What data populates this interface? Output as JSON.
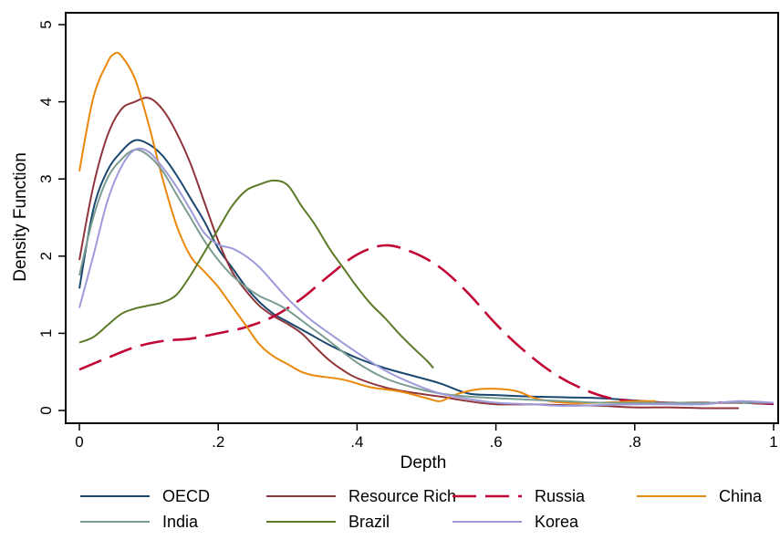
{
  "chart_data": {
    "type": "line",
    "title": "",
    "xlabel": "Depth",
    "ylabel": "Density Function",
    "xlim": [
      0,
      1
    ],
    "ylim": [
      0,
      5
    ],
    "x_ticks": [
      0,
      0.2,
      0.4,
      0.6,
      0.8,
      1
    ],
    "x_tick_labels": [
      "0",
      ".2",
      ".4",
      ".6",
      ".8",
      "1"
    ],
    "y_ticks": [
      0,
      1,
      2,
      3,
      4,
      5
    ],
    "y_tick_labels": [
      "0",
      "1",
      "2",
      "3",
      "4",
      "5"
    ],
    "grid": false,
    "legend_position": "bottom",
    "series": [
      {
        "name": "OECD",
        "color": "#1a476f",
        "dash": "solid",
        "points": [
          [
            0,
            1.58
          ],
          [
            0.02,
            2.6
          ],
          [
            0.04,
            3.1
          ],
          [
            0.06,
            3.35
          ],
          [
            0.08,
            3.5
          ],
          [
            0.1,
            3.45
          ],
          [
            0.12,
            3.3
          ],
          [
            0.14,
            3.05
          ],
          [
            0.16,
            2.75
          ],
          [
            0.18,
            2.45
          ],
          [
            0.2,
            2.1
          ],
          [
            0.22,
            1.85
          ],
          [
            0.24,
            1.6
          ],
          [
            0.26,
            1.4
          ],
          [
            0.28,
            1.25
          ],
          [
            0.3,
            1.15
          ],
          [
            0.33,
            1.0
          ],
          [
            0.36,
            0.85
          ],
          [
            0.4,
            0.68
          ],
          [
            0.44,
            0.55
          ],
          [
            0.48,
            0.45
          ],
          [
            0.52,
            0.35
          ],
          [
            0.56,
            0.22
          ],
          [
            0.6,
            0.2
          ],
          [
            0.65,
            0.18
          ],
          [
            0.7,
            0.17
          ],
          [
            0.75,
            0.16
          ],
          [
            0.8,
            0.13
          ],
          [
            0.85,
            0.1
          ],
          [
            0.9,
            0.1
          ],
          [
            0.95,
            0.1
          ],
          [
            1.0,
            0.08
          ]
        ]
      },
      {
        "name": "Resource Rich",
        "color": "#90353b",
        "dash": "solid",
        "points": [
          [
            0,
            1.95
          ],
          [
            0.02,
            2.9
          ],
          [
            0.04,
            3.55
          ],
          [
            0.06,
            3.9
          ],
          [
            0.08,
            4.0
          ],
          [
            0.1,
            4.05
          ],
          [
            0.12,
            3.9
          ],
          [
            0.14,
            3.6
          ],
          [
            0.16,
            3.2
          ],
          [
            0.18,
            2.7
          ],
          [
            0.2,
            2.2
          ],
          [
            0.22,
            1.8
          ],
          [
            0.24,
            1.55
          ],
          [
            0.26,
            1.35
          ],
          [
            0.28,
            1.22
          ],
          [
            0.3,
            1.12
          ],
          [
            0.32,
            1.0
          ],
          [
            0.34,
            0.82
          ],
          [
            0.36,
            0.65
          ],
          [
            0.38,
            0.52
          ],
          [
            0.4,
            0.42
          ],
          [
            0.44,
            0.3
          ],
          [
            0.48,
            0.23
          ],
          [
            0.52,
            0.18
          ],
          [
            0.56,
            0.12
          ],
          [
            0.6,
            0.08
          ],
          [
            0.65,
            0.08
          ],
          [
            0.7,
            0.07
          ],
          [
            0.75,
            0.06
          ],
          [
            0.8,
            0.04
          ],
          [
            0.85,
            0.04
          ],
          [
            0.9,
            0.03
          ],
          [
            0.95,
            0.03
          ]
        ]
      },
      {
        "name": "Russia",
        "color": "#c10534",
        "dash": "long",
        "points": [
          [
            0,
            0.53
          ],
          [
            0.04,
            0.68
          ],
          [
            0.08,
            0.82
          ],
          [
            0.12,
            0.9
          ],
          [
            0.16,
            0.93
          ],
          [
            0.2,
            1.0
          ],
          [
            0.24,
            1.08
          ],
          [
            0.28,
            1.22
          ],
          [
            0.32,
            1.45
          ],
          [
            0.36,
            1.75
          ],
          [
            0.4,
            2.02
          ],
          [
            0.44,
            2.14
          ],
          [
            0.48,
            2.05
          ],
          [
            0.52,
            1.85
          ],
          [
            0.56,
            1.52
          ],
          [
            0.6,
            1.12
          ],
          [
            0.64,
            0.78
          ],
          [
            0.68,
            0.5
          ],
          [
            0.72,
            0.3
          ],
          [
            0.76,
            0.17
          ],
          [
            0.8,
            0.12
          ],
          [
            0.85,
            0.1
          ],
          [
            0.9,
            0.1
          ],
          [
            0.95,
            0.1
          ],
          [
            1.0,
            0.09
          ]
        ]
      },
      {
        "name": "China",
        "color": "#ea8809",
        "dash": "solid",
        "points": [
          [
            0,
            3.1
          ],
          [
            0.02,
            4.05
          ],
          [
            0.04,
            4.5
          ],
          [
            0.05,
            4.62
          ],
          [
            0.06,
            4.6
          ],
          [
            0.08,
            4.3
          ],
          [
            0.1,
            3.7
          ],
          [
            0.12,
            3.0
          ],
          [
            0.14,
            2.4
          ],
          [
            0.16,
            2.0
          ],
          [
            0.18,
            1.8
          ],
          [
            0.2,
            1.6
          ],
          [
            0.22,
            1.35
          ],
          [
            0.24,
            1.1
          ],
          [
            0.26,
            0.85
          ],
          [
            0.28,
            0.7
          ],
          [
            0.3,
            0.6
          ],
          [
            0.32,
            0.5
          ],
          [
            0.34,
            0.45
          ],
          [
            0.38,
            0.4
          ],
          [
            0.42,
            0.3
          ],
          [
            0.46,
            0.25
          ],
          [
            0.5,
            0.16
          ],
          [
            0.52,
            0.12
          ],
          [
            0.54,
            0.2
          ],
          [
            0.57,
            0.27
          ],
          [
            0.6,
            0.28
          ],
          [
            0.63,
            0.25
          ],
          [
            0.66,
            0.15
          ],
          [
            0.7,
            0.1
          ],
          [
            0.75,
            0.1
          ],
          [
            0.8,
            0.12
          ],
          [
            0.83,
            0.12
          ]
        ]
      },
      {
        "name": "India",
        "color": "#7b9d91",
        "dash": "solid",
        "points": [
          [
            0,
            1.75
          ],
          [
            0.02,
            2.5
          ],
          [
            0.04,
            3.0
          ],
          [
            0.06,
            3.25
          ],
          [
            0.08,
            3.38
          ],
          [
            0.1,
            3.3
          ],
          [
            0.12,
            3.1
          ],
          [
            0.14,
            2.8
          ],
          [
            0.16,
            2.5
          ],
          [
            0.18,
            2.2
          ],
          [
            0.2,
            1.95
          ],
          [
            0.22,
            1.75
          ],
          [
            0.24,
            1.6
          ],
          [
            0.26,
            1.48
          ],
          [
            0.28,
            1.4
          ],
          [
            0.3,
            1.3
          ],
          [
            0.33,
            1.1
          ],
          [
            0.36,
            0.9
          ],
          [
            0.4,
            0.62
          ],
          [
            0.44,
            0.42
          ],
          [
            0.48,
            0.3
          ],
          [
            0.52,
            0.22
          ],
          [
            0.56,
            0.18
          ],
          [
            0.6,
            0.16
          ],
          [
            0.65,
            0.14
          ],
          [
            0.7,
            0.12
          ],
          [
            0.75,
            0.1
          ],
          [
            0.8,
            0.1
          ],
          [
            0.85,
            0.1
          ],
          [
            0.9,
            0.1
          ],
          [
            0.95,
            0.1
          ],
          [
            1.0,
            0.1
          ]
        ]
      },
      {
        "name": "Brazil",
        "color": "#5b7a27",
        "dash": "solid",
        "points": [
          [
            0,
            0.88
          ],
          [
            0.02,
            0.95
          ],
          [
            0.04,
            1.1
          ],
          [
            0.06,
            1.25
          ],
          [
            0.08,
            1.32
          ],
          [
            0.1,
            1.36
          ],
          [
            0.12,
            1.4
          ],
          [
            0.14,
            1.5
          ],
          [
            0.16,
            1.75
          ],
          [
            0.18,
            2.05
          ],
          [
            0.2,
            2.35
          ],
          [
            0.22,
            2.65
          ],
          [
            0.24,
            2.85
          ],
          [
            0.26,
            2.93
          ],
          [
            0.28,
            2.98
          ],
          [
            0.3,
            2.92
          ],
          [
            0.32,
            2.65
          ],
          [
            0.34,
            2.4
          ],
          [
            0.36,
            2.1
          ],
          [
            0.38,
            1.85
          ],
          [
            0.4,
            1.6
          ],
          [
            0.42,
            1.38
          ],
          [
            0.44,
            1.2
          ],
          [
            0.46,
            1.0
          ],
          [
            0.48,
            0.82
          ],
          [
            0.5,
            0.65
          ],
          [
            0.51,
            0.55
          ]
        ]
      },
      {
        "name": "Korea",
        "color": "#9d9bd9",
        "dash": "solid",
        "points": [
          [
            0,
            1.33
          ],
          [
            0.02,
            2.0
          ],
          [
            0.04,
            2.7
          ],
          [
            0.06,
            3.15
          ],
          [
            0.08,
            3.38
          ],
          [
            0.1,
            3.35
          ],
          [
            0.12,
            3.15
          ],
          [
            0.14,
            2.9
          ],
          [
            0.16,
            2.6
          ],
          [
            0.18,
            2.3
          ],
          [
            0.2,
            2.15
          ],
          [
            0.22,
            2.1
          ],
          [
            0.24,
            2.0
          ],
          [
            0.26,
            1.85
          ],
          [
            0.28,
            1.65
          ],
          [
            0.3,
            1.45
          ],
          [
            0.33,
            1.2
          ],
          [
            0.36,
            1.0
          ],
          [
            0.4,
            0.75
          ],
          [
            0.44,
            0.52
          ],
          [
            0.48,
            0.35
          ],
          [
            0.52,
            0.22
          ],
          [
            0.56,
            0.15
          ],
          [
            0.6,
            0.1
          ],
          [
            0.65,
            0.08
          ],
          [
            0.7,
            0.06
          ],
          [
            0.75,
            0.07
          ],
          [
            0.8,
            0.08
          ],
          [
            0.85,
            0.08
          ],
          [
            0.9,
            0.08
          ],
          [
            0.95,
            0.12
          ],
          [
            1.0,
            0.1
          ]
        ]
      }
    ]
  }
}
